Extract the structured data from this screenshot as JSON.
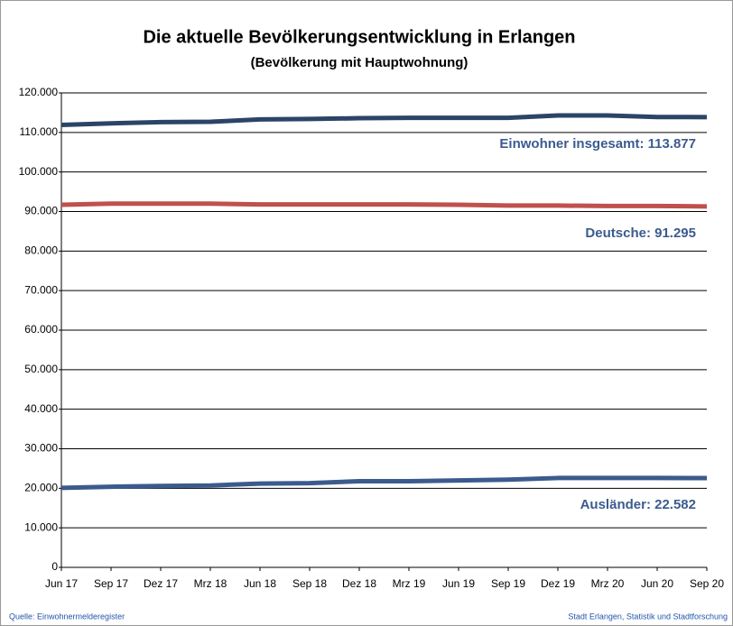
{
  "chart_data": {
    "type": "line",
    "title": "Die aktuelle Bevölkerungsentwicklung in Erlangen",
    "subtitle": "(Bevölkerung mit Hauptwohnung)",
    "categories": [
      "Jun 17",
      "Sep 17",
      "Dez 17",
      "Mrz 18",
      "Jun 18",
      "Sep 18",
      "Dez 18",
      "Mrz 19",
      "Jun 19",
      "Sep 19",
      "Dez 19",
      "Mrz 20",
      "Jun 20",
      "Sep 20"
    ],
    "series": [
      {
        "name": "Einwohner insgesamt",
        "color": "#2b4468",
        "values": [
          111900,
          112300,
          112600,
          112700,
          113300,
          113400,
          113600,
          113700,
          113700,
          113700,
          114300,
          114300,
          113900,
          113877
        ]
      },
      {
        "name": "Deutsche",
        "color": "#c0504d",
        "values": [
          91700,
          92000,
          92000,
          92000,
          91800,
          91800,
          91800,
          91800,
          91700,
          91500,
          91500,
          91400,
          91400,
          91295
        ]
      },
      {
        "name": "Ausländer",
        "color": "#3b5b8e",
        "values": [
          20100,
          20400,
          20600,
          20700,
          21200,
          21300,
          21800,
          21800,
          22000,
          22200,
          22600,
          22600,
          22600,
          22582
        ]
      }
    ],
    "annotations": [
      "Einwohner insgesamt: 113.877",
      "Deutsche: 91.295",
      "Ausländer: 22.582"
    ],
    "ylim": [
      0,
      120000
    ],
    "yticks": [
      0,
      {
        "value": 10000,
        "label": "10.000"
      },
      {
        "value": 20000,
        "label": "20.000"
      },
      {
        "value": 30000,
        "label": "30.000"
      },
      {
        "value": 40000,
        "label": "40.000"
      },
      {
        "value": 50000,
        "label": "50.000"
      },
      {
        "value": 60000,
        "label": "60.000"
      },
      {
        "value": 70000,
        "label": "70.000"
      },
      {
        "value": 80000,
        "label": "80.000"
      },
      {
        "value": 90000,
        "label": "90.000"
      },
      {
        "value": 100000,
        "label": "100.000"
      },
      {
        "value": 110000,
        "label": "110.000"
      },
      {
        "value": 120000,
        "label": "120.000"
      }
    ],
    "grid": true,
    "source": "Quelle: Einwohnermelderegister",
    "credit": "Stadt Erlangen, Statistik und Stadtforschung"
  }
}
